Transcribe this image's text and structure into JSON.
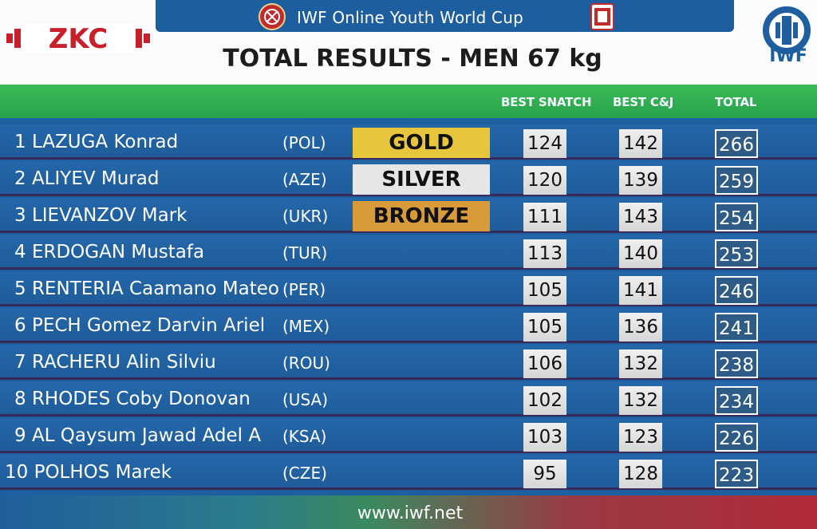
{
  "header": {
    "event_title": "IWF Online Youth World Cup",
    "results_title": "TOTAL RESULTS - MEN 67 kg",
    "sponsor_logo_text": "ZKC",
    "federation_logo_text": "IWF"
  },
  "columns": {
    "snatch": "BEST SNATCH",
    "cj": "BEST C&J",
    "total": "TOTAL"
  },
  "colors": {
    "row_blue": "#2467a9",
    "header_green": "#3dbb58",
    "gold": "#e7c53d",
    "silver": "#e6e6e6",
    "bronze": "#d99a3a",
    "total_box": "#2e5c86"
  },
  "results": [
    {
      "name": "1 LAZUGA Konrad",
      "country": "(POL)",
      "medal": "GOLD",
      "snatch": "124",
      "cj": "142",
      "total": "266"
    },
    {
      "name": "2 ALIYEV Murad",
      "country": "(AZE)",
      "medal": "SILVER",
      "snatch": "120",
      "cj": "139",
      "total": "259"
    },
    {
      "name": "3 LIEVANZOV Mark",
      "country": "(UKR)",
      "medal": "BRONZE",
      "snatch": "111",
      "cj": "143",
      "total": "254"
    },
    {
      "name": "4 ERDOGAN Mustafa",
      "country": "(TUR)",
      "medal": "",
      "snatch": "113",
      "cj": "140",
      "total": "253"
    },
    {
      "name": "5 RENTERIA Caamano Mateo",
      "country": "(PER)",
      "medal": "",
      "snatch": "105",
      "cj": "141",
      "total": "246"
    },
    {
      "name": "6 PECH Gomez Darvin Ariel",
      "country": "(MEX)",
      "medal": "",
      "snatch": "105",
      "cj": "136",
      "total": "241"
    },
    {
      "name": "7 RACHERU Alin Silviu",
      "country": "(ROU)",
      "medal": "",
      "snatch": "106",
      "cj": "132",
      "total": "238"
    },
    {
      "name": "8 RHODES Coby Donovan",
      "country": "(USA)",
      "medal": "",
      "snatch": "102",
      "cj": "132",
      "total": "234"
    },
    {
      "name": "9 AL Qaysum Jawad Adel A",
      "country": "(KSA)",
      "medal": "",
      "snatch": "103",
      "cj": "123",
      "total": "226"
    },
    {
      "name": "10 POLHOS Marek",
      "country": "(CZE)",
      "medal": "",
      "snatch": "95",
      "cj": "128",
      "total": "223"
    }
  ],
  "footer": {
    "url": "www.iwf.net"
  }
}
